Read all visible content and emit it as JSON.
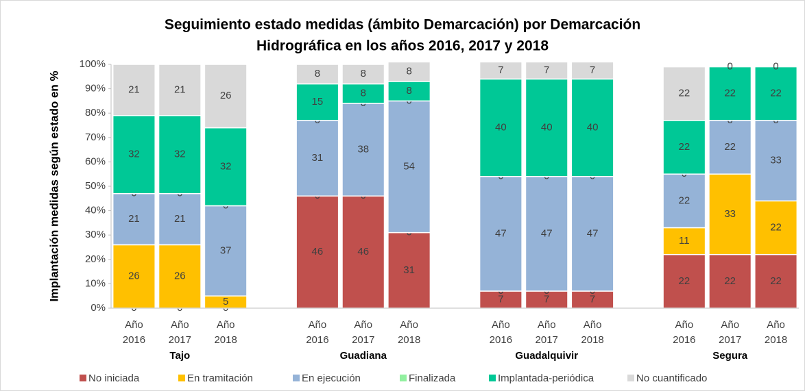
{
  "chart_data": {
    "type": "stacked_bar",
    "title": [
      "Seguimiento estado medidas (ámbito Demarcación) por Demarcación",
      "Hidrográfica en los años 2016, 2017 y 2018"
    ],
    "y_label": "Implantación medidas según estado en  %",
    "groups": [
      "Tajo",
      "Guadiana",
      "Guadalquivir",
      "Segura"
    ],
    "categories": [
      "Año 2016",
      "Año 2017",
      "Año 2018",
      "Año 2016",
      "Año 2017",
      "Año 2018",
      "Año 2016",
      "Año 2017",
      "Año 2018",
      "Año 2016",
      "Año 2017",
      "Año 2018"
    ],
    "series": [
      {
        "name": "No iniciada",
        "color": "#c0504d",
        "values": [
          0,
          0,
          0,
          46,
          46,
          31,
          7,
          7,
          7,
          22,
          22,
          22
        ]
      },
      {
        "name": "En tramitación",
        "color": "#ffc000",
        "values": [
          26,
          26,
          5,
          0,
          0,
          0,
          0,
          0,
          0,
          11,
          33,
          22
        ]
      },
      {
        "name": "En ejecución",
        "color": "#95b3d7",
        "values": [
          21,
          21,
          37,
          31,
          38,
          54,
          47,
          47,
          47,
          22,
          22,
          33
        ]
      },
      {
        "name": "Finalizada",
        "color": "#92f0a0",
        "values": [
          0,
          0,
          0,
          0,
          0,
          0,
          0,
          0,
          0,
          0,
          0,
          0
        ]
      },
      {
        "name": "Implantada-periódica",
        "color": "#00c896",
        "values": [
          32,
          32,
          32,
          15,
          8,
          8,
          40,
          40,
          40,
          22,
          22,
          22
        ]
      },
      {
        "name": "No cuantificado",
        "color": "#d9d9d9",
        "values": [
          21,
          21,
          26,
          8,
          8,
          8,
          7,
          7,
          7,
          22,
          0,
          0
        ]
      }
    ],
    "ylim": [
      0,
      100
    ],
    "yticks": [
      {
        "value": 0,
        "label": "0%"
      },
      {
        "value": 10,
        "label": "10%"
      },
      {
        "value": 20,
        "label": "20%"
      },
      {
        "value": 30,
        "label": "30%"
      },
      {
        "value": 40,
        "label": "40%"
      },
      {
        "value": 50,
        "label": "50%"
      },
      {
        "value": 60,
        "label": "60%"
      },
      {
        "value": 70,
        "label": "70%"
      },
      {
        "value": 80,
        "label": "80%"
      },
      {
        "value": 90,
        "label": "90%"
      },
      {
        "value": 100,
        "label": "100%"
      }
    ],
    "legend": "bottom"
  }
}
